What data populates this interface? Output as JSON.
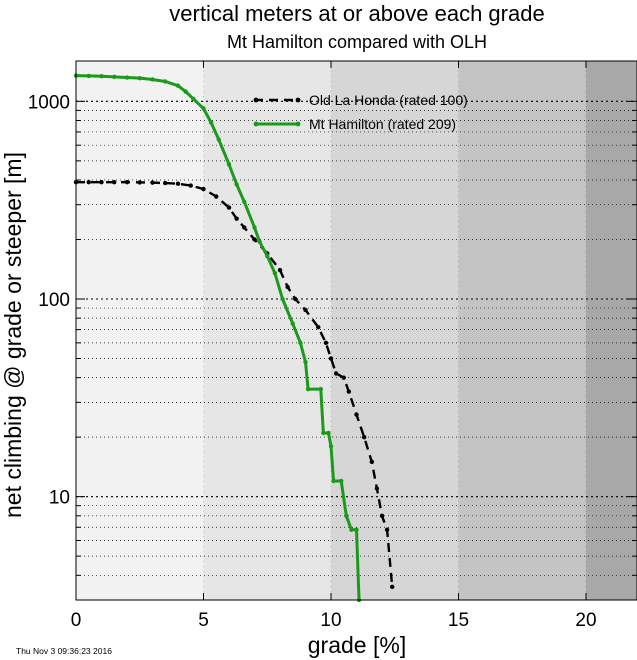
{
  "chart_data": {
    "type": "line",
    "title": "vertical meters at or above each grade",
    "subtitle": "Mt Hamilton compared with OLH",
    "xlabel": "grade [%]",
    "ylabel": "net climbing @ grade or steeper [m]",
    "xlim": [
      0,
      22
    ],
    "ylim": [
      3,
      1600
    ],
    "yscale": "log",
    "xticks": [
      0,
      5,
      10,
      15,
      20
    ],
    "xtick_labels": [
      "0",
      "5",
      "10",
      "15",
      "20"
    ],
    "yticks": [
      10,
      100,
      1000
    ],
    "ytick_labels": [
      "10",
      "100",
      "1000"
    ],
    "bands": [
      {
        "from": 0,
        "to": 5,
        "color": "#f2f2f2"
      },
      {
        "from": 5,
        "to": 10,
        "color": "#e6e6e6"
      },
      {
        "from": 10,
        "to": 15,
        "color": "#d6d6d6"
      },
      {
        "from": 15,
        "to": 20,
        "color": "#c4c4c4"
      },
      {
        "from": 20,
        "to": 22,
        "color": "#a8a8a8"
      }
    ],
    "legend_position": "top-right",
    "series": [
      {
        "name": "Old La Honda (rated 100)",
        "color": "#000000",
        "style": "dashed",
        "x": [
          0,
          0.5,
          1,
          1.5,
          2,
          2.5,
          3,
          3.5,
          4,
          4.5,
          5,
          5.5,
          6,
          6.3,
          6.6,
          7,
          7.5,
          8,
          8.3,
          8.6,
          9,
          9.5,
          9.8,
          10,
          10.2,
          10.5,
          10.7,
          11,
          11.3,
          11.6,
          11.8,
          12,
          12.2,
          12.4
        ],
        "y": [
          390,
          390,
          390,
          390,
          390,
          389,
          388,
          386,
          383,
          375,
          360,
          330,
          290,
          255,
          230,
          200,
          170,
          140,
          115,
          100,
          88,
          72,
          60,
          50,
          42,
          40,
          34,
          26,
          20,
          15,
          11,
          8,
          6.8,
          3.5
        ]
      },
      {
        "name": "Mt Hamilton (rated 209)",
        "color": "#1a9a1a",
        "style": "solid",
        "x": [
          0,
          0.5,
          1,
          1.5,
          2,
          2.5,
          3,
          3.5,
          4,
          4.3,
          4.6,
          5,
          5.3,
          5.6,
          6,
          6.3,
          6.6,
          7,
          7.2,
          7.5,
          7.8,
          8.1,
          8.5,
          8.8,
          9,
          9.1,
          9.6,
          9.7,
          9.9,
          10,
          10.1,
          10.4,
          10.6,
          10.8,
          11,
          11.1
        ],
        "y": [
          1350,
          1345,
          1340,
          1330,
          1320,
          1310,
          1290,
          1260,
          1200,
          1120,
          1030,
          920,
          780,
          640,
          480,
          380,
          310,
          230,
          195,
          165,
          135,
          100,
          75,
          60,
          48,
          35,
          35,
          21,
          21,
          18,
          12,
          12,
          8,
          6.8,
          6.8,
          3
        ]
      }
    ],
    "timestamp": "Thu Nov  3 09:36:23 2016"
  }
}
